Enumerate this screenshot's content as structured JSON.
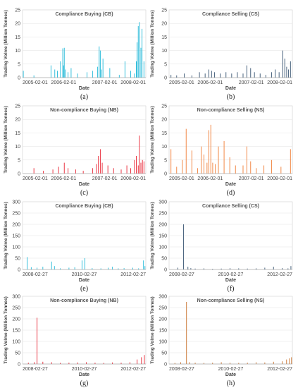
{
  "chart_data": [
    {
      "id": "a",
      "panel_label": "(a)",
      "type": "bar",
      "title": "Compliance Buying (CB)",
      "xlabel": "Date",
      "ylabel": "Trading Volme (Million Tonnes)",
      "color": "#1fb8d8",
      "ylim": [
        0,
        25
      ],
      "yticks": [
        0,
        5,
        10,
        15,
        20,
        25
      ],
      "xticks": [
        "2005-02-01",
        "2006-02-01",
        "2007-02-01",
        "2008-02-01"
      ],
      "xrange": [
        2005.0,
        2008.25
      ],
      "x": [
        2005.02,
        2005.3,
        2005.75,
        2005.85,
        2005.92,
        2006.0,
        2006.06,
        2006.08,
        2006.1,
        2006.13,
        2006.2,
        2006.28,
        2006.45,
        2006.7,
        2006.85,
        2006.98,
        2007.02,
        2007.05,
        2007.08,
        2007.12,
        2007.3,
        2007.55,
        2007.7,
        2007.85,
        2007.95,
        2008.0,
        2008.02,
        2008.05,
        2008.08,
        2008.12,
        2008.15,
        2008.2
      ],
      "values": [
        2.5,
        0.8,
        4.5,
        3,
        2.5,
        6,
        10.8,
        4.5,
        11,
        3,
        2,
        3.5,
        1.5,
        2,
        2.5,
        4,
        11.5,
        10,
        3,
        7,
        3.5,
        1,
        6,
        2.5,
        1.5,
        6,
        13,
        19,
        20.5,
        11,
        18,
        6
      ]
    },
    {
      "id": "b",
      "panel_label": "(b)",
      "type": "bar",
      "title": "Compliance Selling (CS)",
      "xlabel": "Date",
      "ylabel": "Trading Volme (Million Tonnes)",
      "color": "#33506e",
      "ylim": [
        0,
        25
      ],
      "yticks": [
        0,
        5,
        10,
        15,
        20,
        25
      ],
      "xticks": [
        "2005-02-01",
        "2006-02-01",
        "2007-02-01",
        "2008-02-01"
      ],
      "xrange": [
        2005.0,
        2008.25
      ],
      "x": [
        2005.05,
        2005.2,
        2005.4,
        2005.6,
        2005.8,
        2005.95,
        2006.05,
        2006.12,
        2006.2,
        2006.35,
        2006.5,
        2006.65,
        2006.8,
        2006.95,
        2007.05,
        2007.15,
        2007.25,
        2007.4,
        2007.55,
        2007.7,
        2007.8,
        2007.9,
        2008.0,
        2008.05,
        2008.1,
        2008.15,
        2008.2
      ],
      "values": [
        1,
        0.8,
        1.5,
        0.8,
        2,
        1.5,
        3,
        2.5,
        2,
        1.5,
        2,
        1.5,
        2,
        1.5,
        4.5,
        3.5,
        2,
        1.5,
        1,
        2,
        3,
        2,
        10,
        7,
        4,
        3,
        6
      ]
    },
    {
      "id": "c",
      "panel_label": "(c)",
      "type": "bar",
      "title": "Non-compliance Buying (NB)",
      "xlabel": "Date",
      "ylabel": "Trading Volme (Million Tonnes)",
      "color": "#e8202f",
      "ylim": [
        0,
        25
      ],
      "yticks": [
        0,
        5,
        10,
        15,
        20,
        25
      ],
      "xticks": [
        "2005-02-01",
        "2006-02-01",
        "2007-02-01",
        "2008-02-01"
      ],
      "xrange": [
        2005.0,
        2008.25
      ],
      "x": [
        2005.3,
        2005.55,
        2005.8,
        2005.95,
        2006.1,
        2006.2,
        2006.4,
        2006.6,
        2006.85,
        2006.95,
        2007.0,
        2007.05,
        2007.1,
        2007.25,
        2007.4,
        2007.6,
        2007.75,
        2007.85,
        2007.95,
        2008.0,
        2008.05,
        2008.08,
        2008.12,
        2008.16,
        2008.2
      ],
      "values": [
        2,
        1,
        1.5,
        2.5,
        4,
        2,
        1.5,
        1,
        2,
        3.5,
        6.5,
        9,
        4,
        3,
        2,
        1.5,
        3,
        2,
        5,
        6.5,
        3,
        14,
        4,
        5,
        4.5
      ]
    },
    {
      "id": "d",
      "panel_label": "(d)",
      "type": "bar",
      "title": "Non-compliance Selling (NS)",
      "xlabel": "Date",
      "ylabel": "Trading Volme (Million Tonnes)",
      "color": "#f07b32",
      "ylim": [
        0,
        25
      ],
      "yticks": [
        0,
        5,
        10,
        15,
        20,
        25
      ],
      "xticks": [
        "2005-02-01",
        "2006-02-01",
        "2007-02-01",
        "2008-02-01"
      ],
      "xrange": [
        2005.0,
        2008.25
      ],
      "x": [
        2005.05,
        2005.2,
        2005.35,
        2005.45,
        2005.6,
        2005.75,
        2005.85,
        2005.92,
        2006.0,
        2006.05,
        2006.1,
        2006.15,
        2006.22,
        2006.3,
        2006.45,
        2006.6,
        2006.75,
        2006.95,
        2007.05,
        2007.15,
        2007.3,
        2007.5,
        2007.7,
        2007.95,
        2008.2
      ],
      "values": [
        9,
        2.5,
        5,
        16.5,
        8.5,
        2,
        10,
        7,
        4,
        16,
        18,
        4,
        3.5,
        10,
        12,
        6,
        3,
        3,
        10,
        4.5,
        2,
        3,
        5,
        2.5,
        9
      ]
    },
    {
      "id": "e",
      "panel_label": "(e)",
      "type": "bar",
      "title": "Compliance Buying (CB)",
      "xlabel": "Date",
      "ylabel": "Trading Volme (Million Tonnes)",
      "color": "#1fb8d8",
      "ylim": [
        0,
        300
      ],
      "yticks": [
        0,
        50,
        100,
        150,
        200,
        250,
        300
      ],
      "xticks": [
        "2008-02-27",
        "2010-02-27",
        "2012-02-27"
      ],
      "xrange": [
        2008.0,
        2012.25
      ],
      "x": [
        2008.16,
        2008.3,
        2008.5,
        2008.7,
        2009.0,
        2009.1,
        2009.3,
        2009.6,
        2009.8,
        2010.05,
        2010.15,
        2010.4,
        2010.7,
        2010.95,
        2011.1,
        2011.3,
        2011.5,
        2011.8,
        2012.0,
        2012.17,
        2012.22
      ],
      "values": [
        55,
        10,
        8,
        12,
        35,
        15,
        5,
        8,
        10,
        40,
        50,
        6,
        5,
        8,
        12,
        5,
        6,
        8,
        5,
        40,
        15
      ]
    },
    {
      "id": "f",
      "panel_label": "(f)",
      "type": "bar",
      "title": "Compliance Selling (CS)",
      "xlabel": "Date",
      "ylabel": "Trading Volme (Million Tonnes)",
      "color": "#33506e",
      "ylim": [
        0,
        300
      ],
      "yticks": [
        0,
        50,
        100,
        150,
        200,
        250,
        300
      ],
      "xticks": [
        "2008-02-27",
        "2010-02-27",
        "2012-02-27"
      ],
      "xrange": [
        2008.0,
        2012.25
      ],
      "x": [
        2008.3,
        2008.5,
        2008.65,
        2008.75,
        2008.9,
        2009.2,
        2009.5,
        2009.8,
        2010.1,
        2010.4,
        2010.7,
        2011.0,
        2011.3,
        2011.6,
        2011.9,
        2012.1,
        2012.2
      ],
      "values": [
        8,
        200,
        12,
        6,
        4,
        5,
        3,
        4,
        6,
        5,
        4,
        5,
        8,
        12,
        6,
        5,
        15
      ]
    },
    {
      "id": "g",
      "panel_label": "(g)",
      "type": "bar",
      "title": "Non-compliance Buying (NB)",
      "xlabel": "Date",
      "ylabel": "Trading Volme (Million Tonnes)",
      "color": "#e8202f",
      "ylim": [
        0,
        300
      ],
      "yticks": [
        0,
        50,
        100,
        150,
        200,
        250,
        300
      ],
      "xticks": [
        "2008-02-27",
        "2010-02-27",
        "2012-02-27"
      ],
      "xrange": [
        2008.0,
        2012.25
      ],
      "x": [
        2008.2,
        2008.4,
        2008.5,
        2008.7,
        2009.0,
        2009.3,
        2009.6,
        2009.9,
        2010.2,
        2010.5,
        2010.8,
        2011.1,
        2011.4,
        2011.7,
        2011.95,
        2012.1,
        2012.2
      ],
      "values": [
        6,
        8,
        205,
        10,
        8,
        5,
        6,
        7,
        8,
        6,
        5,
        7,
        6,
        8,
        20,
        30,
        40
      ]
    },
    {
      "id": "h",
      "panel_label": "(h)",
      "type": "bar",
      "title": "Non-compliance Selling (NS)",
      "xlabel": "Date",
      "ylabel": "Trading Volme (Million Tonnes)",
      "color": "#c8702a",
      "ylim": [
        0,
        300
      ],
      "yticks": [
        0,
        50,
        100,
        150,
        200,
        250,
        300
      ],
      "xticks": [
        "2008-02-27",
        "2010-02-27",
        "2012-02-27"
      ],
      "xrange": [
        2008.0,
        2012.25
      ],
      "x": [
        2008.2,
        2008.4,
        2008.6,
        2008.7,
        2008.9,
        2009.2,
        2009.5,
        2009.8,
        2010.1,
        2010.4,
        2010.7,
        2011.0,
        2011.3,
        2011.6,
        2011.9,
        2012.05,
        2012.15,
        2012.22
      ],
      "values": [
        5,
        8,
        275,
        8,
        6,
        5,
        6,
        8,
        6,
        5,
        6,
        8,
        7,
        10,
        12,
        20,
        25,
        30
      ]
    }
  ]
}
